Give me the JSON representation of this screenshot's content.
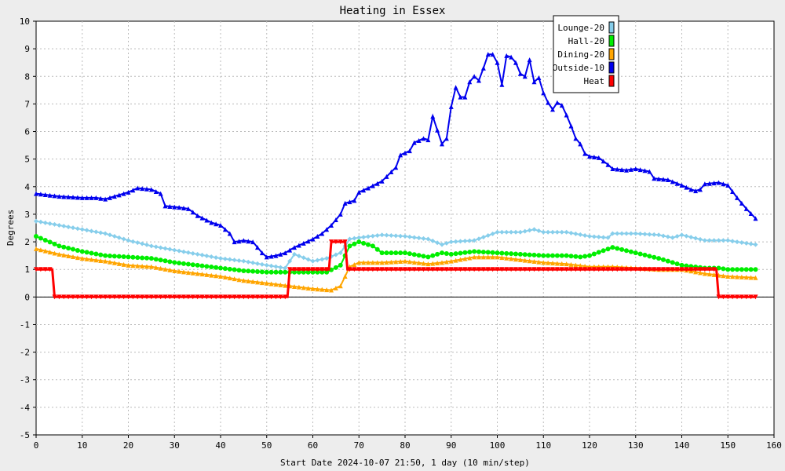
{
  "chart_data": {
    "type": "line",
    "title": "Heating in Essex",
    "xlabel": "Start Date 2024-10-07 21:50, 1 day (10 min/step)",
    "ylabel": "Degrees",
    "xlim": [
      0,
      160
    ],
    "ylim": [
      -5,
      10
    ],
    "xticks": [
      0,
      10,
      20,
      30,
      40,
      50,
      60,
      70,
      80,
      90,
      100,
      110,
      120,
      130,
      140,
      150,
      160
    ],
    "yticks": [
      -5,
      -4,
      -3,
      -2,
      -1,
      0,
      1,
      2,
      3,
      4,
      5,
      6,
      7,
      8,
      9,
      10
    ],
    "grid": true,
    "legend_position": "top-right",
    "series": [
      {
        "name": "Lounge-20",
        "color": "#87ceeb",
        "marker": "diamond",
        "points": [
          [
            0,
            2.75
          ],
          [
            5,
            2.6
          ],
          [
            10,
            2.45
          ],
          [
            15,
            2.3
          ],
          [
            20,
            2.05
          ],
          [
            25,
            1.85
          ],
          [
            30,
            1.7
          ],
          [
            35,
            1.55
          ],
          [
            40,
            1.4
          ],
          [
            45,
            1.3
          ],
          [
            50,
            1.15
          ],
          [
            54,
            1.05
          ],
          [
            56,
            1.55
          ],
          [
            60,
            1.3
          ],
          [
            63,
            1.4
          ],
          [
            66,
            1.6
          ],
          [
            68,
            2.1
          ],
          [
            70,
            2.15
          ],
          [
            75,
            2.25
          ],
          [
            80,
            2.2
          ],
          [
            85,
            2.1
          ],
          [
            88,
            1.9
          ],
          [
            90,
            2.0
          ],
          [
            95,
            2.05
          ],
          [
            100,
            2.35
          ],
          [
            105,
            2.35
          ],
          [
            108,
            2.45
          ],
          [
            110,
            2.35
          ],
          [
            115,
            2.35
          ],
          [
            120,
            2.2
          ],
          [
            124,
            2.15
          ],
          [
            125,
            2.3
          ],
          [
            130,
            2.3
          ],
          [
            135,
            2.25
          ],
          [
            138,
            2.15
          ],
          [
            140,
            2.25
          ],
          [
            145,
            2.05
          ],
          [
            150,
            2.05
          ],
          [
            156,
            1.9
          ]
        ]
      },
      {
        "name": "Hall-20",
        "color": "#00ee00",
        "marker": "circle",
        "points": [
          [
            0,
            2.2
          ],
          [
            5,
            1.85
          ],
          [
            10,
            1.65
          ],
          [
            15,
            1.5
          ],
          [
            20,
            1.45
          ],
          [
            25,
            1.4
          ],
          [
            30,
            1.25
          ],
          [
            35,
            1.15
          ],
          [
            40,
            1.05
          ],
          [
            45,
            0.95
          ],
          [
            50,
            0.9
          ],
          [
            55,
            0.9
          ],
          [
            60,
            0.9
          ],
          [
            63,
            0.9
          ],
          [
            66,
            1.15
          ],
          [
            68,
            1.85
          ],
          [
            70,
            2.0
          ],
          [
            73,
            1.85
          ],
          [
            75,
            1.6
          ],
          [
            80,
            1.6
          ],
          [
            85,
            1.45
          ],
          [
            88,
            1.6
          ],
          [
            90,
            1.55
          ],
          [
            95,
            1.65
          ],
          [
            100,
            1.6
          ],
          [
            105,
            1.55
          ],
          [
            110,
            1.5
          ],
          [
            115,
            1.5
          ],
          [
            118,
            1.45
          ],
          [
            120,
            1.5
          ],
          [
            125,
            1.8
          ],
          [
            130,
            1.6
          ],
          [
            135,
            1.4
          ],
          [
            140,
            1.15
          ],
          [
            145,
            1.05
          ],
          [
            148,
            1.05
          ],
          [
            150,
            1.0
          ],
          [
            156,
            1.0
          ]
        ]
      },
      {
        "name": "Dining-20",
        "color": "#ffa500",
        "marker": "triangle",
        "points": [
          [
            0,
            1.75
          ],
          [
            5,
            1.55
          ],
          [
            10,
            1.4
          ],
          [
            15,
            1.3
          ],
          [
            20,
            1.15
          ],
          [
            25,
            1.1
          ],
          [
            30,
            0.95
          ],
          [
            35,
            0.85
          ],
          [
            40,
            0.75
          ],
          [
            45,
            0.6
          ],
          [
            50,
            0.5
          ],
          [
            55,
            0.4
          ],
          [
            60,
            0.3
          ],
          [
            64,
            0.25
          ],
          [
            66,
            0.4
          ],
          [
            68,
            1.1
          ],
          [
            70,
            1.25
          ],
          [
            75,
            1.25
          ],
          [
            80,
            1.3
          ],
          [
            85,
            1.2
          ],
          [
            88,
            1.25
          ],
          [
            90,
            1.3
          ],
          [
            95,
            1.45
          ],
          [
            100,
            1.45
          ],
          [
            105,
            1.35
          ],
          [
            110,
            1.25
          ],
          [
            115,
            1.2
          ],
          [
            120,
            1.1
          ],
          [
            125,
            1.1
          ],
          [
            130,
            1.05
          ],
          [
            135,
            1.0
          ],
          [
            140,
            1.0
          ],
          [
            145,
            0.85
          ],
          [
            150,
            0.75
          ],
          [
            156,
            0.7
          ]
        ]
      },
      {
        "name": "Outside-10",
        "color": "#0000ee",
        "marker": "triangle",
        "points": [
          [
            0,
            3.75
          ],
          [
            5,
            3.65
          ],
          [
            10,
            3.6
          ],
          [
            13,
            3.6
          ],
          [
            15,
            3.55
          ],
          [
            18,
            3.7
          ],
          [
            20,
            3.8
          ],
          [
            22,
            3.95
          ],
          [
            25,
            3.9
          ],
          [
            27,
            3.75
          ],
          [
            28,
            3.3
          ],
          [
            31,
            3.25
          ],
          [
            33,
            3.2
          ],
          [
            35,
            2.95
          ],
          [
            38,
            2.7
          ],
          [
            40,
            2.6
          ],
          [
            42,
            2.3
          ],
          [
            43,
            2.0
          ],
          [
            45,
            2.05
          ],
          [
            47,
            2.0
          ],
          [
            49,
            1.6
          ],
          [
            50,
            1.45
          ],
          [
            52,
            1.5
          ],
          [
            54,
            1.6
          ],
          [
            56,
            1.8
          ],
          [
            60,
            2.1
          ],
          [
            62,
            2.3
          ],
          [
            64,
            2.6
          ],
          [
            66,
            3.0
          ],
          [
            67,
            3.4
          ],
          [
            69,
            3.5
          ],
          [
            70,
            3.8
          ],
          [
            72,
            3.95
          ],
          [
            75,
            4.2
          ],
          [
            78,
            4.7
          ],
          [
            79,
            5.15
          ],
          [
            81,
            5.3
          ],
          [
            82,
            5.6
          ],
          [
            84,
            5.75
          ],
          [
            85,
            5.7
          ],
          [
            86,
            6.55
          ],
          [
            87,
            6.05
          ],
          [
            88,
            5.55
          ],
          [
            89,
            5.75
          ],
          [
            90,
            6.9
          ],
          [
            91,
            7.6
          ],
          [
            92,
            7.25
          ],
          [
            93,
            7.25
          ],
          [
            94,
            7.8
          ],
          [
            95,
            8.0
          ],
          [
            96,
            7.85
          ],
          [
            97,
            8.3
          ],
          [
            98,
            8.8
          ],
          [
            99,
            8.8
          ],
          [
            100,
            8.5
          ],
          [
            101,
            7.7
          ],
          [
            102,
            8.75
          ],
          [
            103,
            8.7
          ],
          [
            104,
            8.5
          ],
          [
            105,
            8.1
          ],
          [
            106,
            8.0
          ],
          [
            107,
            8.6
          ],
          [
            108,
            7.8
          ],
          [
            109,
            7.95
          ],
          [
            110,
            7.4
          ],
          [
            111,
            7.05
          ],
          [
            112,
            6.8
          ],
          [
            113,
            7.05
          ],
          [
            114,
            6.95
          ],
          [
            115,
            6.6
          ],
          [
            116,
            6.2
          ],
          [
            117,
            5.75
          ],
          [
            118,
            5.55
          ],
          [
            119,
            5.2
          ],
          [
            120,
            5.1
          ],
          [
            122,
            5.05
          ],
          [
            124,
            4.8
          ],
          [
            125,
            4.65
          ],
          [
            128,
            4.6
          ],
          [
            130,
            4.65
          ],
          [
            133,
            4.55
          ],
          [
            134,
            4.3
          ],
          [
            137,
            4.25
          ],
          [
            140,
            4.05
          ],
          [
            142,
            3.9
          ],
          [
            143,
            3.85
          ],
          [
            144,
            3.9
          ],
          [
            145,
            4.1
          ],
          [
            148,
            4.15
          ],
          [
            150,
            4.05
          ],
          [
            152,
            3.6
          ],
          [
            154,
            3.2
          ],
          [
            156,
            2.85
          ]
        ]
      },
      {
        "name": "Heat",
        "color": "#ff0000",
        "marker": "triangle-down",
        "points": [
          [
            0,
            1.0
          ],
          [
            3.5,
            1.0
          ],
          [
            4,
            0.0
          ],
          [
            54.5,
            0.0
          ],
          [
            55,
            1.0
          ],
          [
            63.5,
            1.0
          ],
          [
            64,
            2.0
          ],
          [
            67,
            2.0
          ],
          [
            67.5,
            1.0
          ],
          [
            147.5,
            1.0
          ],
          [
            148,
            0.0
          ],
          [
            156,
            0.0
          ]
        ]
      }
    ]
  }
}
